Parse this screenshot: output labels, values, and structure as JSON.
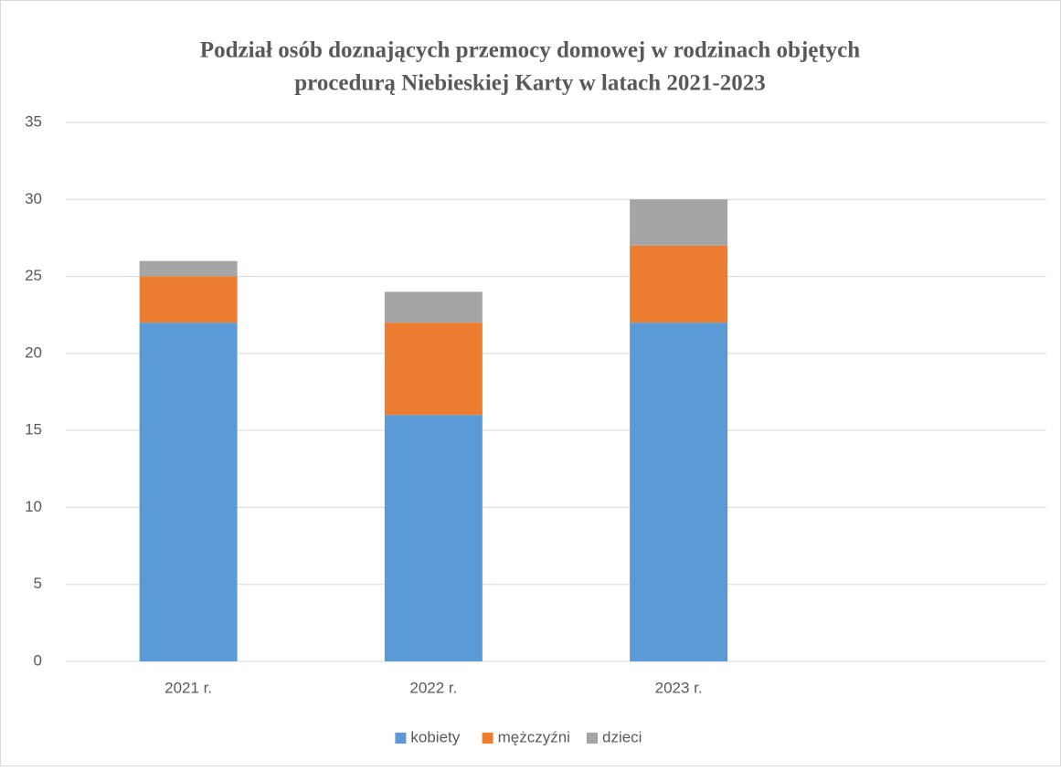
{
  "chart_data": {
    "type": "stacked_bar",
    "title": [
      "Podział osób doznających przemocy domowej w rodzinach objętych",
      "procedurą Niebieskiej Karty w latach 2021-2023"
    ],
    "categories": [
      "2021 r.",
      "2022 r.",
      "2023 r.",
      null
    ],
    "series": [
      {
        "name": "kobiety",
        "color": "#5b9bd5",
        "values": [
          22,
          16,
          22,
          null
        ]
      },
      {
        "name": "mężczyźni",
        "color": "#ed7d31",
        "values": [
          3,
          6,
          5,
          null
        ]
      },
      {
        "name": "dzieci",
        "color": "#a5a5a5",
        "values": [
          1,
          2,
          3,
          null
        ]
      }
    ],
    "ylim": [
      0,
      35
    ],
    "yticks": [
      0,
      5,
      10,
      15,
      20,
      25,
      30,
      35
    ],
    "grid": true,
    "legend": "bottom"
  }
}
